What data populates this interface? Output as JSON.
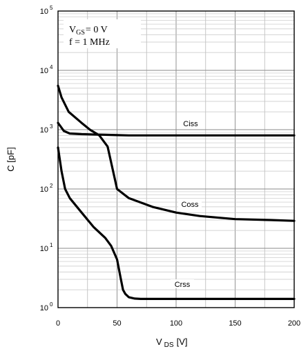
{
  "chart_data": {
    "type": "line",
    "scale": {
      "x": "linear",
      "y": "log"
    },
    "xlim": [
      0,
      200
    ],
    "ylim": [
      1,
      100000
    ],
    "grid": true,
    "x_ticks": [
      0,
      50,
      100,
      150,
      200
    ],
    "y_ticks": [
      {
        "value": 1,
        "base": "10",
        "exp": "0"
      },
      {
        "value": 10,
        "base": "10",
        "exp": "1"
      },
      {
        "value": 100,
        "base": "10",
        "exp": "2"
      },
      {
        "value": 1000,
        "base": "10",
        "exp": "3"
      },
      {
        "value": 10000,
        "base": "10",
        "exp": "4"
      },
      {
        "value": 100000,
        "base": "10",
        "exp": "5"
      }
    ],
    "xlabel": {
      "main": "V",
      "sub": "DS",
      "unit": "[V]"
    },
    "ylabel": "C  [pF]",
    "conditions": {
      "vgs_main": "V",
      "vgs_sub": "GS",
      "vgs_value": "= 0 V",
      "freq": "f = 1 MHz"
    },
    "series": [
      {
        "name": "Ciss",
        "x": [
          0,
          2,
          5,
          10,
          20,
          30,
          40,
          50,
          60,
          80,
          100,
          150,
          200
        ],
        "values": [
          1300,
          1150,
          950,
          860,
          840,
          830,
          820,
          810,
          800,
          800,
          800,
          800,
          800
        ]
      },
      {
        "name": "Coss",
        "x": [
          0,
          3,
          9,
          20,
          27,
          35,
          42,
          50,
          60,
          80,
          100,
          120,
          150,
          180,
          200
        ],
        "values": [
          5500,
          3500,
          2000,
          1300,
          1000,
          800,
          520,
          100,
          70,
          50,
          40,
          35,
          31,
          30,
          29
        ]
      },
      {
        "name": "Crss",
        "x": [
          0,
          3,
          6,
          10,
          20,
          30,
          40,
          45,
          50,
          53,
          55,
          57,
          60,
          65,
          70,
          80,
          100,
          150,
          200
        ],
        "values": [
          500,
          200,
          100,
          70,
          40,
          23,
          15,
          11,
          6.5,
          3.2,
          2,
          1.7,
          1.5,
          1.42,
          1.4,
          1.4,
          1.4,
          1.4,
          1.4
        ]
      }
    ]
  }
}
